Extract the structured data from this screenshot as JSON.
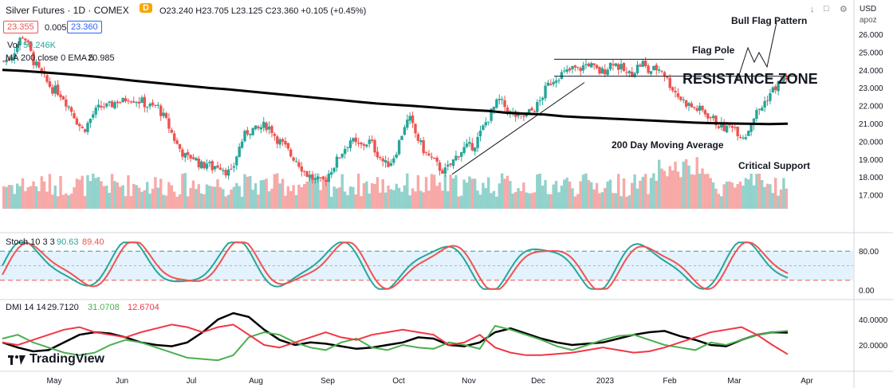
{
  "header": {
    "symbol": "Silver Futures · 1D · COMEX",
    "ohlc": "O23.240 H23.705 L23.125 C23.360 +0.105 (+0.45%)",
    "bid": "23.355",
    "spread": "0.005",
    "ask": "23.360",
    "volume_label": "Vol",
    "volume_value": "50.246K",
    "ma_label": "MA 200 close 0 EMA 5",
    "ma_value": "20.985",
    "stoch_label": "Stoch 10 3 3",
    "stoch_k": "90.63",
    "stoch_d": "89.40",
    "dmi_label": "DMI 14 14",
    "dmi_adx": "29.7120",
    "dmi_plus": "31.0708",
    "dmi_minus": "12.6704",
    "currency": "USD",
    "scale_mode": "apoz",
    "logo_text": "TradingView"
  },
  "annotations": {
    "bull_flag": "Bull Flag Pattern",
    "flag_pole": "Flag Pole",
    "resistance": "RESISTANCE ZONE",
    "ma200": "200 Day Moving Average",
    "support": "Critical Support"
  },
  "colors": {
    "up": "#26a69a",
    "down": "#ef5350",
    "ma": "#000000",
    "stoch_k": "#26a69a",
    "stoch_d": "#ef5350",
    "adx": "#000000",
    "di_plus": "#4caf50",
    "di_minus": "#f23645",
    "band": "#e3f2fd"
  },
  "chart_data": [
    {
      "type": "candlestick",
      "title": "Silver Futures · 1D · COMEX",
      "y_ticks": [
        "26.000",
        "25.000",
        "24.000",
        "23.000",
        "22.000",
        "21.000",
        "20.000",
        "19.000",
        "18.000",
        "17.000"
      ],
      "ylim": [
        16.5,
        26.6
      ],
      "x_ticks": [
        "May",
        "Jun",
        "Jul",
        "Aug",
        "Sep",
        "Oct",
        "Nov",
        "Dec",
        "2023",
        "Feb",
        "Mar",
        "Apr"
      ],
      "series": [
        {
          "name": "Price",
          "close_path": [
            24.5,
            24.6,
            25.0,
            25.6,
            26.0,
            25.3,
            24.5,
            24.0,
            23.6,
            23.2,
            22.9,
            22.8,
            22.5,
            22.0,
            21.6,
            21.0,
            20.6,
            21.0,
            21.5,
            21.8,
            22.0,
            21.9,
            22.1,
            22.3,
            22.2,
            22.5,
            22.4,
            22.3,
            22.2,
            22.0,
            21.9,
            22.0,
            21.5,
            21.0,
            20.4,
            19.8,
            19.4,
            19.0,
            19.2,
            18.9,
            18.6,
            18.8,
            18.5,
            18.7,
            18.6,
            18.3,
            18.2,
            19.2,
            20.0,
            20.5,
            20.7,
            20.6,
            20.8,
            20.9,
            20.7,
            20.2,
            19.9,
            19.6,
            19.2,
            19.0,
            18.6,
            18.2,
            18.0,
            17.8,
            17.7,
            17.9,
            18.4,
            18.8,
            19.3,
            19.7,
            20.1,
            19.8,
            19.7,
            19.9,
            20.0,
            19.5,
            19.1,
            18.7,
            18.8,
            19.3,
            20.1,
            21.0,
            21.2,
            20.5,
            19.9,
            19.4,
            19.1,
            18.8,
            18.5,
            18.3,
            18.6,
            19.0,
            19.4,
            19.6,
            19.7,
            19.8,
            20.3,
            20.9,
            21.4,
            21.9,
            22.3,
            22.0,
            21.6,
            21.5,
            21.3,
            21.4,
            21.6,
            21.8,
            22.1,
            22.7,
            23.2,
            23.5,
            23.7,
            23.8,
            23.9,
            24.1,
            24.0,
            24.2,
            24.4,
            24.1,
            23.9,
            23.9,
            24.2,
            24.5,
            24.2,
            24.0,
            23.7,
            23.9,
            24.2,
            24.4,
            23.9,
            24.0,
            24.1,
            24.0,
            23.4,
            23.0,
            22.6,
            22.3,
            22.1,
            21.9,
            21.8,
            21.7,
            21.5,
            21.3,
            21.0,
            20.8,
            20.7,
            21.0,
            20.6,
            20.3,
            20.4,
            21.2,
            21.6,
            21.9,
            22.4,
            22.8,
            23.1,
            23.4,
            23.6
          ]
        },
        {
          "name": "MA 200 close 0 EMA 5",
          "values": [
            24.0,
            23.95,
            23.88,
            23.8,
            23.72,
            23.62,
            23.52,
            23.4,
            23.3,
            23.2,
            23.1,
            23.0,
            22.92,
            22.82,
            22.72,
            22.62,
            22.52,
            22.42,
            22.32,
            22.22,
            22.12,
            22.05,
            21.98,
            21.9,
            21.82,
            21.76,
            21.7,
            21.6,
            21.55,
            21.5,
            21.4,
            21.35,
            21.3,
            21.25,
            21.2,
            21.15,
            21.1,
            21.05,
            21.02,
            21.0,
            20.98,
            20.97,
            20.985
          ]
        }
      ],
      "volume": {
        "title": "Vol",
        "last": "50.246K"
      }
    },
    {
      "type": "line",
      "title": "Stoch 10 3 3",
      "y_ticks": [
        "80.00",
        "0.00"
      ],
      "ylim": [
        0,
        100
      ],
      "bands": [
        80,
        50,
        20
      ],
      "series": [
        {
          "name": "%K",
          "last": 90.63
        },
        {
          "name": "%D",
          "last": 89.4
        }
      ]
    },
    {
      "type": "line",
      "title": "DMI 14 14",
      "y_ticks": [
        "40.0000",
        "20.0000"
      ],
      "ylim": [
        5,
        50
      ],
      "series": [
        {
          "name": "ADX",
          "values": [
            22,
            18,
            15,
            16,
            22,
            28,
            30,
            29,
            26,
            22,
            20,
            19,
            22,
            30,
            40,
            45,
            42,
            32,
            24,
            20,
            22,
            21,
            19,
            17,
            18,
            20,
            22,
            26,
            25,
            20,
            19,
            22,
            30,
            33,
            29,
            25,
            22,
            20,
            21,
            22,
            25,
            28,
            30,
            31,
            27,
            24,
            20,
            19,
            24,
            28,
            30,
            29.71
          ]
        },
        {
          "name": "+DI",
          "values": [
            25,
            28,
            22,
            18,
            14,
            12,
            14,
            20,
            24,
            22,
            18,
            14,
            10,
            9,
            8,
            12,
            26,
            30,
            28,
            22,
            18,
            16,
            22,
            25,
            18,
            16,
            20,
            18,
            17,
            22,
            20,
            17,
            35,
            32,
            28,
            24,
            19,
            16,
            20,
            24,
            27,
            28,
            24,
            20,
            18,
            16,
            22,
            20,
            24,
            28,
            30,
            31.07
          ]
        },
        {
          "name": "-DI",
          "values": [
            22,
            20,
            24,
            28,
            32,
            34,
            30,
            28,
            26,
            30,
            33,
            36,
            34,
            30,
            34,
            36,
            28,
            20,
            18,
            22,
            26,
            30,
            26,
            24,
            28,
            30,
            32,
            30,
            28,
            20,
            22,
            28,
            18,
            14,
            12,
            12,
            13,
            14,
            16,
            18,
            16,
            14,
            15,
            18,
            22,
            26,
            30,
            32,
            34,
            28,
            20,
            12.67
          ]
        }
      ]
    }
  ]
}
